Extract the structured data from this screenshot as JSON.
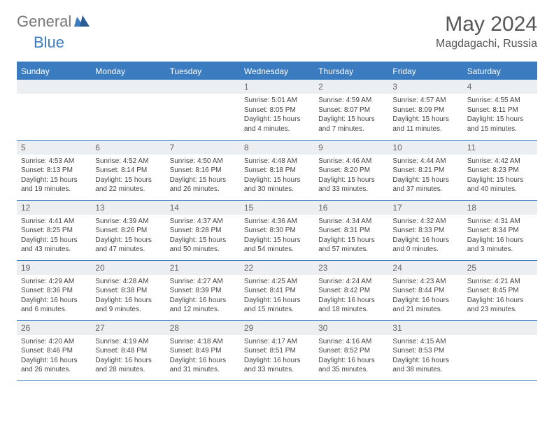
{
  "brand": {
    "g": "General",
    "b": "Blue"
  },
  "header": {
    "month_year": "May 2024",
    "location": "Magdagachi, Russia"
  },
  "weekdays": [
    "Sunday",
    "Monday",
    "Tuesday",
    "Wednesday",
    "Thursday",
    "Friday",
    "Saturday"
  ],
  "colors": {
    "accent": "#3b7bbf",
    "header_row_bg": "#eceff1"
  },
  "days": [
    null,
    null,
    null,
    {
      "n": "1",
      "sr": "5:01 AM",
      "ss": "8:05 PM",
      "dl": "15 hours and 4 minutes."
    },
    {
      "n": "2",
      "sr": "4:59 AM",
      "ss": "8:07 PM",
      "dl": "15 hours and 7 minutes."
    },
    {
      "n": "3",
      "sr": "4:57 AM",
      "ss": "8:09 PM",
      "dl": "15 hours and 11 minutes."
    },
    {
      "n": "4",
      "sr": "4:55 AM",
      "ss": "8:11 PM",
      "dl": "15 hours and 15 minutes."
    },
    {
      "n": "5",
      "sr": "4:53 AM",
      "ss": "8:13 PM",
      "dl": "15 hours and 19 minutes."
    },
    {
      "n": "6",
      "sr": "4:52 AM",
      "ss": "8:14 PM",
      "dl": "15 hours and 22 minutes."
    },
    {
      "n": "7",
      "sr": "4:50 AM",
      "ss": "8:16 PM",
      "dl": "15 hours and 26 minutes."
    },
    {
      "n": "8",
      "sr": "4:48 AM",
      "ss": "8:18 PM",
      "dl": "15 hours and 30 minutes."
    },
    {
      "n": "9",
      "sr": "4:46 AM",
      "ss": "8:20 PM",
      "dl": "15 hours and 33 minutes."
    },
    {
      "n": "10",
      "sr": "4:44 AM",
      "ss": "8:21 PM",
      "dl": "15 hours and 37 minutes."
    },
    {
      "n": "11",
      "sr": "4:42 AM",
      "ss": "8:23 PM",
      "dl": "15 hours and 40 minutes."
    },
    {
      "n": "12",
      "sr": "4:41 AM",
      "ss": "8:25 PM",
      "dl": "15 hours and 43 minutes."
    },
    {
      "n": "13",
      "sr": "4:39 AM",
      "ss": "8:26 PM",
      "dl": "15 hours and 47 minutes."
    },
    {
      "n": "14",
      "sr": "4:37 AM",
      "ss": "8:28 PM",
      "dl": "15 hours and 50 minutes."
    },
    {
      "n": "15",
      "sr": "4:36 AM",
      "ss": "8:30 PM",
      "dl": "15 hours and 54 minutes."
    },
    {
      "n": "16",
      "sr": "4:34 AM",
      "ss": "8:31 PM",
      "dl": "15 hours and 57 minutes."
    },
    {
      "n": "17",
      "sr": "4:32 AM",
      "ss": "8:33 PM",
      "dl": "16 hours and 0 minutes."
    },
    {
      "n": "18",
      "sr": "4:31 AM",
      "ss": "8:34 PM",
      "dl": "16 hours and 3 minutes."
    },
    {
      "n": "19",
      "sr": "4:29 AM",
      "ss": "8:36 PM",
      "dl": "16 hours and 6 minutes."
    },
    {
      "n": "20",
      "sr": "4:28 AM",
      "ss": "8:38 PM",
      "dl": "16 hours and 9 minutes."
    },
    {
      "n": "21",
      "sr": "4:27 AM",
      "ss": "8:39 PM",
      "dl": "16 hours and 12 minutes."
    },
    {
      "n": "22",
      "sr": "4:25 AM",
      "ss": "8:41 PM",
      "dl": "16 hours and 15 minutes."
    },
    {
      "n": "23",
      "sr": "4:24 AM",
      "ss": "8:42 PM",
      "dl": "16 hours and 18 minutes."
    },
    {
      "n": "24",
      "sr": "4:23 AM",
      "ss": "8:44 PM",
      "dl": "16 hours and 21 minutes."
    },
    {
      "n": "25",
      "sr": "4:21 AM",
      "ss": "8:45 PM",
      "dl": "16 hours and 23 minutes."
    },
    {
      "n": "26",
      "sr": "4:20 AM",
      "ss": "8:46 PM",
      "dl": "16 hours and 26 minutes."
    },
    {
      "n": "27",
      "sr": "4:19 AM",
      "ss": "8:48 PM",
      "dl": "16 hours and 28 minutes."
    },
    {
      "n": "28",
      "sr": "4:18 AM",
      "ss": "8:49 PM",
      "dl": "16 hours and 31 minutes."
    },
    {
      "n": "29",
      "sr": "4:17 AM",
      "ss": "8:51 PM",
      "dl": "16 hours and 33 minutes."
    },
    {
      "n": "30",
      "sr": "4:16 AM",
      "ss": "8:52 PM",
      "dl": "16 hours and 35 minutes."
    },
    {
      "n": "31",
      "sr": "4:15 AM",
      "ss": "8:53 PM",
      "dl": "16 hours and 38 minutes."
    },
    null
  ],
  "labels": {
    "sunrise": "Sunrise: ",
    "sunset": "Sunset: ",
    "daylight": "Daylight: "
  }
}
